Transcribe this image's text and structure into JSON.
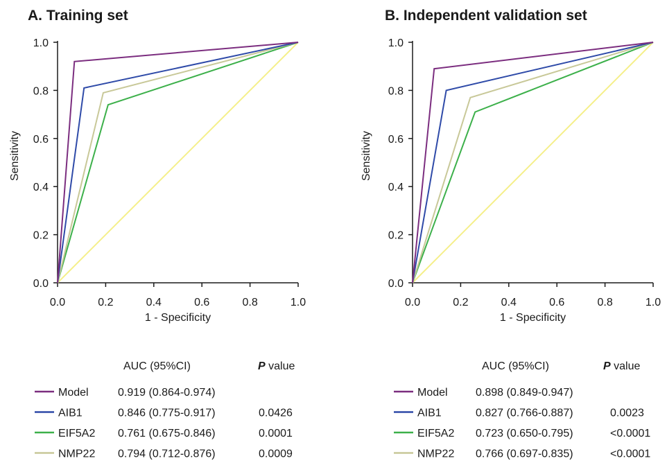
{
  "chart_data": [
    {
      "type": "line",
      "title": "A. Training set",
      "xlabel": "1 - Specificity",
      "ylabel": "Sensitivity",
      "xlim": [
        0,
        1
      ],
      "ylim": [
        0,
        1
      ],
      "tick_labels": [
        "0.0",
        "0.2",
        "0.4",
        "0.6",
        "0.8",
        "1.0"
      ],
      "series": [
        {
          "name": "Model",
          "color": "#7b2d7f",
          "x": [
            0,
            0.07,
            1
          ],
          "y": [
            0,
            0.92,
            1
          ]
        },
        {
          "name": "AIB1",
          "color": "#2e4aa8",
          "x": [
            0,
            0.11,
            1
          ],
          "y": [
            0,
            0.81,
            1
          ]
        },
        {
          "name": "NMP22",
          "color": "#c8c898",
          "x": [
            0,
            0.19,
            1
          ],
          "y": [
            0,
            0.79,
            1
          ]
        },
        {
          "name": "EIF5A2",
          "color": "#3cb04a",
          "x": [
            0,
            0.21,
            1
          ],
          "y": [
            0,
            0.74,
            1
          ]
        },
        {
          "name": "",
          "color": "#f5ef8a",
          "x": [
            0,
            1
          ],
          "y": [
            0,
            1
          ]
        }
      ],
      "table": {
        "header_auc": "AUC (95%CI)",
        "header_p_bold": "P",
        "header_p_rest": " value",
        "rows": [
          {
            "name": "Model",
            "color": "#7b2d7f",
            "auc": "0.919 (0.864-0.974)",
            "p": ""
          },
          {
            "name": "AIB1",
            "color": "#2e4aa8",
            "auc": "0.846 (0.775-0.917)",
            "p": "0.0426"
          },
          {
            "name": "EIF5A2",
            "color": "#3cb04a",
            "auc": "0.761 (0.675-0.846)",
            "p": "0.0001"
          },
          {
            "name": "NMP22",
            "color": "#c8c898",
            "auc": "0.794 (0.712-0.876)",
            "p": "0.0009"
          }
        ]
      }
    },
    {
      "type": "line",
      "title": "B. Independent validation set",
      "xlabel": "1 - Specificity",
      "ylabel": "Sensitivity",
      "xlim": [
        0,
        1
      ],
      "ylim": [
        0,
        1
      ],
      "tick_labels": [
        "0.0",
        "0.2",
        "0.4",
        "0.6",
        "0.8",
        "1.0"
      ],
      "series": [
        {
          "name": "Model",
          "color": "#7b2d7f",
          "x": [
            0,
            0.09,
            1
          ],
          "y": [
            0,
            0.89,
            1
          ]
        },
        {
          "name": "AIB1",
          "color": "#2e4aa8",
          "x": [
            0,
            0.14,
            1
          ],
          "y": [
            0,
            0.8,
            1
          ]
        },
        {
          "name": "NMP22",
          "color": "#c8c898",
          "x": [
            0,
            0.24,
            1
          ],
          "y": [
            0,
            0.77,
            1
          ]
        },
        {
          "name": "EIF5A2",
          "color": "#3cb04a",
          "x": [
            0,
            0.26,
            1
          ],
          "y": [
            0,
            0.71,
            1
          ]
        },
        {
          "name": "",
          "color": "#f5ef8a",
          "x": [
            0,
            1
          ],
          "y": [
            0,
            1
          ]
        }
      ],
      "table": {
        "header_auc": "AUC (95%CI)",
        "header_p_bold": "P",
        "header_p_rest": " value",
        "rows": [
          {
            "name": "Model",
            "color": "#7b2d7f",
            "auc": "0.898 (0.849-0.947)",
            "p": ""
          },
          {
            "name": "AIB1",
            "color": "#2e4aa8",
            "auc": "0.827 (0.766-0.887)",
            "p": "0.0023"
          },
          {
            "name": "EIF5A2",
            "color": "#3cb04a",
            "auc": "0.723 (0.650-0.795)",
            "p": "<0.0001"
          },
          {
            "name": "NMP22",
            "color": "#c8c898",
            "auc": "0.766 (0.697-0.835)",
            "p": "<0.0001"
          }
        ]
      }
    }
  ]
}
